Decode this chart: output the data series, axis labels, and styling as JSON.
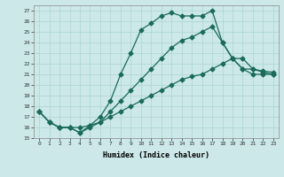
{
  "xlabel": "Humidex (Indice chaleur)",
  "background_color": "#cce8e8",
  "grid_color": "#aad4d4",
  "line_color": "#1a6b5a",
  "xlim": [
    -0.5,
    23.5
  ],
  "ylim": [
    15,
    27.5
  ],
  "yticks": [
    15,
    16,
    17,
    18,
    19,
    20,
    21,
    22,
    23,
    24,
    25,
    26,
    27
  ],
  "xticks": [
    0,
    1,
    2,
    3,
    4,
    5,
    6,
    7,
    8,
    9,
    10,
    11,
    12,
    13,
    14,
    15,
    16,
    17,
    18,
    19,
    20,
    21,
    22,
    23
  ],
  "line1_x": [
    0,
    1,
    2,
    3,
    4,
    5,
    6,
    7,
    8,
    9,
    10,
    11,
    12,
    13,
    14,
    15,
    16,
    17,
    18,
    19,
    20,
    21,
    22,
    23
  ],
  "line1_y": [
    17.5,
    16.5,
    16.0,
    16.0,
    15.5,
    16.2,
    17.0,
    18.5,
    21.0,
    23.0,
    25.2,
    25.8,
    26.5,
    26.8,
    26.5,
    26.5,
    26.5,
    27.0,
    24.0,
    22.5,
    21.5,
    21.5,
    21.3,
    21.2
  ],
  "line2_x": [
    0,
    1,
    2,
    3,
    4,
    5,
    6,
    7,
    8,
    9,
    10,
    11,
    12,
    13,
    14,
    15,
    16,
    17,
    18,
    19,
    20,
    21,
    22,
    23
  ],
  "line2_y": [
    17.5,
    16.5,
    16.0,
    16.0,
    15.5,
    16.0,
    16.5,
    17.5,
    18.5,
    19.5,
    20.5,
    21.5,
    22.5,
    23.5,
    24.2,
    24.5,
    25.0,
    25.5,
    24.0,
    22.5,
    21.5,
    21.0,
    21.0,
    21.0
  ],
  "line3_x": [
    0,
    1,
    2,
    3,
    4,
    5,
    6,
    7,
    8,
    9,
    10,
    11,
    12,
    13,
    14,
    15,
    16,
    17,
    18,
    19,
    20,
    21,
    22,
    23
  ],
  "line3_y": [
    17.5,
    16.5,
    16.0,
    16.0,
    16.0,
    16.2,
    16.5,
    17.0,
    17.5,
    18.0,
    18.5,
    19.0,
    19.5,
    20.0,
    20.5,
    20.8,
    21.0,
    21.5,
    22.0,
    22.5,
    22.5,
    21.5,
    21.2,
    21.0
  ]
}
